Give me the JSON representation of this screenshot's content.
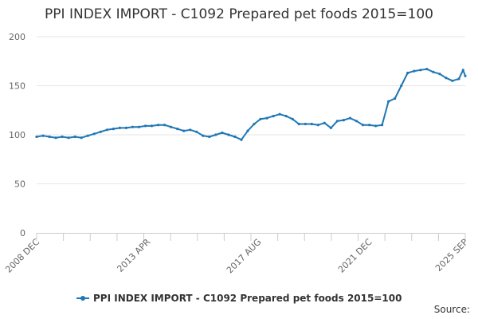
{
  "chart_data": {
    "type": "line",
    "title": "PPI INDEX IMPORT - C1092 Prepared pet foods 2015=100",
    "xlabel": "",
    "ylabel": "",
    "ylim": [
      0,
      200
    ],
    "y_ticks": [
      0,
      50,
      100,
      150,
      200
    ],
    "x_range": [
      "2008 DEC",
      "2025 SEP"
    ],
    "x_tick_labels": [
      "2008 DEC",
      "2013 APR",
      "2017 AUG",
      "2021 DEC",
      "2025 SEP"
    ],
    "grid": true,
    "legend": "bottom-center",
    "series": [
      {
        "name": "PPI INDEX IMPORT - C1092 Prepared pet foods 2015=100",
        "color": "#1f77b4",
        "points": [
          [
            "2008 DEC",
            98
          ],
          [
            "2009 MAR",
            99
          ],
          [
            "2009 JUN",
            98
          ],
          [
            "2009 SEP",
            97
          ],
          [
            "2009 DEC",
            98
          ],
          [
            "2010 MAR",
            97
          ],
          [
            "2010 JUN",
            98
          ],
          [
            "2010 SEP",
            97
          ],
          [
            "2010 DEC",
            99
          ],
          [
            "2011 MAR",
            101
          ],
          [
            "2011 JUN",
            103
          ],
          [
            "2011 SEP",
            105
          ],
          [
            "2011 DEC",
            106
          ],
          [
            "2012 MAR",
            107
          ],
          [
            "2012 JUN",
            107
          ],
          [
            "2012 SEP",
            108
          ],
          [
            "2012 DEC",
            108
          ],
          [
            "2013 MAR",
            109
          ],
          [
            "2013 JUN",
            109
          ],
          [
            "2013 SEP",
            110
          ],
          [
            "2013 DEC",
            110
          ],
          [
            "2014 MAR",
            108
          ],
          [
            "2014 JUN",
            106
          ],
          [
            "2014 SEP",
            104
          ],
          [
            "2014 DEC",
            105
          ],
          [
            "2015 MAR",
            103
          ],
          [
            "2015 JUN",
            99
          ],
          [
            "2015 SEP",
            98
          ],
          [
            "2015 DEC",
            100
          ],
          [
            "2016 MAR",
            102
          ],
          [
            "2016 JUN",
            100
          ],
          [
            "2016 SEP",
            98
          ],
          [
            "2016 DEC",
            95
          ],
          [
            "2017 MAR",
            104
          ],
          [
            "2017 JUN",
            111
          ],
          [
            "2017 SEP",
            116
          ],
          [
            "2017 DEC",
            117
          ],
          [
            "2018 MAR",
            119
          ],
          [
            "2018 JUN",
            121
          ],
          [
            "2018 SEP",
            119
          ],
          [
            "2018 DEC",
            116
          ],
          [
            "2019 MAR",
            111
          ],
          [
            "2019 JUN",
            111
          ],
          [
            "2019 SEP",
            111
          ],
          [
            "2019 DEC",
            110
          ],
          [
            "2020 MAR",
            112
          ],
          [
            "2020 JUN",
            107
          ],
          [
            "2020 SEP",
            114
          ],
          [
            "2020 DEC",
            115
          ],
          [
            "2021 MAR",
            117
          ],
          [
            "2021 JUN",
            114
          ],
          [
            "2021 SEP",
            110
          ],
          [
            "2021 DEC",
            110
          ],
          [
            "2022 MAR",
            109
          ],
          [
            "2022 JUN",
            110
          ],
          [
            "2022 SEP",
            134
          ],
          [
            "2022 DEC",
            137
          ],
          [
            "2023 MAR",
            150
          ],
          [
            "2023 JUN",
            163
          ],
          [
            "2023 SEP",
            165
          ],
          [
            "2023 DEC",
            166
          ],
          [
            "2024 MAR",
            167
          ],
          [
            "2024 JUN",
            164
          ],
          [
            "2024 SEP",
            162
          ],
          [
            "2024 DEC",
            158
          ],
          [
            "2025 MAR",
            155
          ],
          [
            "2025 JUN",
            157
          ],
          [
            "2025 AUG",
            166
          ],
          [
            "2025 SEP",
            160
          ]
        ]
      }
    ]
  },
  "source_label": "Source:"
}
